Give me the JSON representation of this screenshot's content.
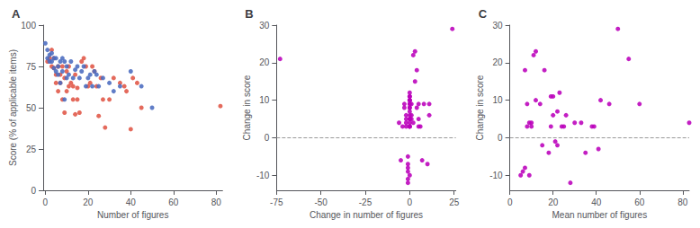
{
  "chart_data": [
    {
      "type": "scatter",
      "panel_label": "A",
      "xlabel": "Number of figures",
      "ylabel": "Score (% of applicable items)",
      "xlim": [
        -1,
        83
      ],
      "ylim": [
        0,
        100
      ],
      "xticks": [
        0,
        20,
        40,
        60,
        80
      ],
      "yticks": [
        0,
        25,
        50,
        75,
        100
      ],
      "grid": false,
      "marker": "circle",
      "series": [
        {
          "color": "#e05545",
          "x": [
            1,
            2,
            3,
            3,
            4,
            4,
            5,
            5,
            6,
            6,
            7,
            7,
            8,
            8,
            9,
            9,
            10,
            10,
            11,
            11,
            12,
            13,
            13,
            14,
            14,
            15,
            15,
            16,
            17,
            18,
            19,
            20,
            21,
            22,
            23,
            24,
            25,
            26,
            27,
            28,
            30,
            32,
            35,
            37,
            38,
            40,
            41,
            43,
            45,
            82
          ],
          "values": [
            78,
            80,
            85,
            75,
            80,
            74,
            70,
            65,
            75,
            60,
            70,
            65,
            75,
            55,
            68,
            47,
            72,
            60,
            75,
            63,
            65,
            55,
            63,
            70,
            46,
            55,
            62,
            47,
            78,
            80,
            75,
            63,
            65,
            75,
            72,
            63,
            45,
            68,
            55,
            38,
            55,
            68,
            65,
            63,
            60,
            37,
            68,
            65,
            50,
            51
          ]
        },
        {
          "color": "#4a6bbf",
          "x": [
            0,
            1,
            1,
            2,
            2,
            3,
            3,
            4,
            4,
            5,
            5,
            6,
            6,
            7,
            7,
            8,
            8,
            9,
            9,
            10,
            10,
            11,
            12,
            13,
            14,
            15,
            16,
            17,
            18,
            19,
            20,
            21,
            22,
            23,
            24,
            25,
            27,
            30,
            32,
            35,
            40,
            45,
            50
          ],
          "values": [
            89,
            85,
            80,
            82,
            78,
            83,
            78,
            80,
            74,
            80,
            72,
            75,
            70,
            78,
            65,
            80,
            72,
            78,
            55,
            75,
            68,
            70,
            78,
            68,
            73,
            75,
            68,
            72,
            75,
            63,
            68,
            70,
            63,
            72,
            70,
            63,
            68,
            65,
            60,
            63,
            72,
            63,
            50
          ]
        }
      ]
    },
    {
      "type": "scatter",
      "panel_label": "B",
      "xlabel": "Change in number of figures",
      "ylabel": "Change in score",
      "xlim": [
        -75,
        26
      ],
      "ylim": [
        -14,
        30
      ],
      "xticks": [
        -75,
        -50,
        -25,
        0,
        25
      ],
      "yticks": [
        -10,
        0,
        10,
        20,
        30
      ],
      "grid": false,
      "marker": "circle",
      "reference_line": {
        "y": 0,
        "color": "#999999",
        "line_style": "dashed"
      },
      "series": [
        {
          "color": "#bb00bb",
          "x": [
            -73,
            -6,
            -5,
            -4,
            -3,
            -3,
            -2,
            -2,
            -2,
            -2,
            -1,
            -1,
            -1,
            -1,
            -1,
            -1,
            0,
            0,
            0,
            0,
            0,
            0,
            0,
            0,
            0,
            0,
            0,
            0,
            0,
            0,
            0,
            0,
            0,
            0,
            0,
            0,
            1,
            1,
            1,
            2,
            2,
            3,
            3,
            4,
            4,
            5,
            5,
            5,
            6,
            7,
            8,
            10,
            11,
            11,
            24
          ],
          "values": [
            21,
            4,
            -6,
            3,
            8,
            9,
            3,
            4,
            5,
            6,
            -5,
            -7,
            -8,
            -9,
            -11,
            -12,
            3,
            3,
            3,
            4,
            5,
            5,
            5,
            6,
            7,
            8,
            8,
            9,
            9,
            10,
            10,
            10,
            11,
            11,
            12,
            -10,
            5,
            6,
            9,
            4,
            22,
            15,
            23,
            18,
            8,
            9,
            5,
            3,
            3,
            -6,
            9,
            -7,
            6,
            9,
            29
          ]
        }
      ]
    },
    {
      "type": "scatter",
      "panel_label": "C",
      "xlabel": "Mean number of figures",
      "ylabel": "Change in score",
      "xlim": [
        0,
        83
      ],
      "ylim": [
        -14,
        30
      ],
      "xticks": [
        0,
        20,
        40,
        60,
        80
      ],
      "yticks": [
        -10,
        0,
        10,
        20,
        30
      ],
      "grid": false,
      "marker": "circle",
      "reference_line": {
        "y": 0,
        "color": "#999999",
        "line_style": "dashed"
      },
      "series": [
        {
          "color": "#bb00bb",
          "x": [
            5,
            6,
            7,
            7,
            8,
            8,
            9,
            9,
            10,
            10,
            11,
            12,
            12,
            14,
            15,
            16,
            18,
            19,
            19,
            20,
            20,
            21,
            22,
            22,
            23,
            24,
            25,
            26,
            28,
            30,
            33,
            35,
            38,
            39,
            41,
            42,
            46,
            50,
            55,
            60,
            83
          ],
          "values": [
            -10,
            -9,
            -8,
            18,
            3,
            9,
            4,
            -10,
            4,
            3,
            22,
            23,
            10,
            9,
            -2,
            18,
            -4,
            11,
            3,
            11,
            6,
            -1,
            7,
            -2,
            12,
            3,
            3,
            6,
            -12,
            4,
            4,
            -4,
            3,
            3,
            -3,
            10,
            9,
            29,
            21,
            9,
            4
          ]
        }
      ]
    }
  ]
}
